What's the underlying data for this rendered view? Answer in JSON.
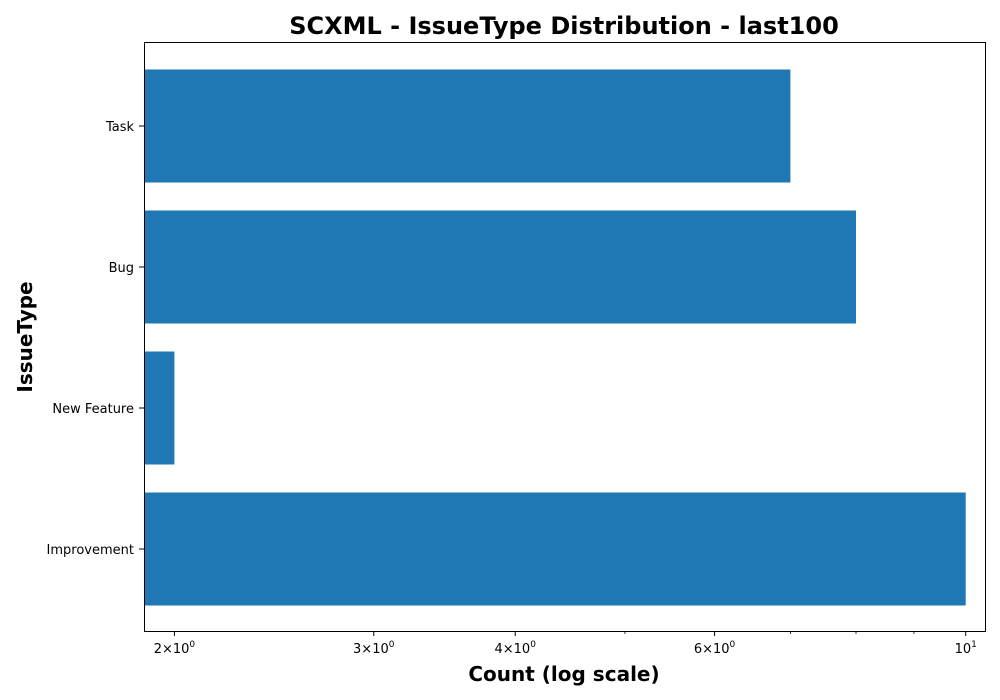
{
  "chart_data": {
    "type": "bar",
    "orientation": "horizontal",
    "title": "SCXML - IssueType Distribution - last100",
    "xlabel": "Count (log scale)",
    "ylabel": "IssueType",
    "x_scale": "log",
    "xlim": [
      1.88,
      10.4
    ],
    "categories": [
      "Improvement",
      "New Feature",
      "Bug",
      "Task"
    ],
    "values": [
      10,
      2,
      8,
      7
    ],
    "bar_color": "#1f77b4",
    "grid": false,
    "x_major_ticks": [
      {
        "value": 2,
        "base": "2",
        "mult": "×10",
        "exp": "0"
      },
      {
        "value": 3,
        "base": "3",
        "mult": "×10",
        "exp": "0"
      },
      {
        "value": 4,
        "base": "4",
        "mult": "×10",
        "exp": "0"
      },
      {
        "value": 6,
        "base": "6",
        "mult": "×10",
        "exp": "0"
      },
      {
        "value": 10,
        "base": "",
        "mult": "10",
        "exp": "1"
      }
    ],
    "x_minor_ticks": [
      5,
      7,
      8,
      9
    ]
  }
}
